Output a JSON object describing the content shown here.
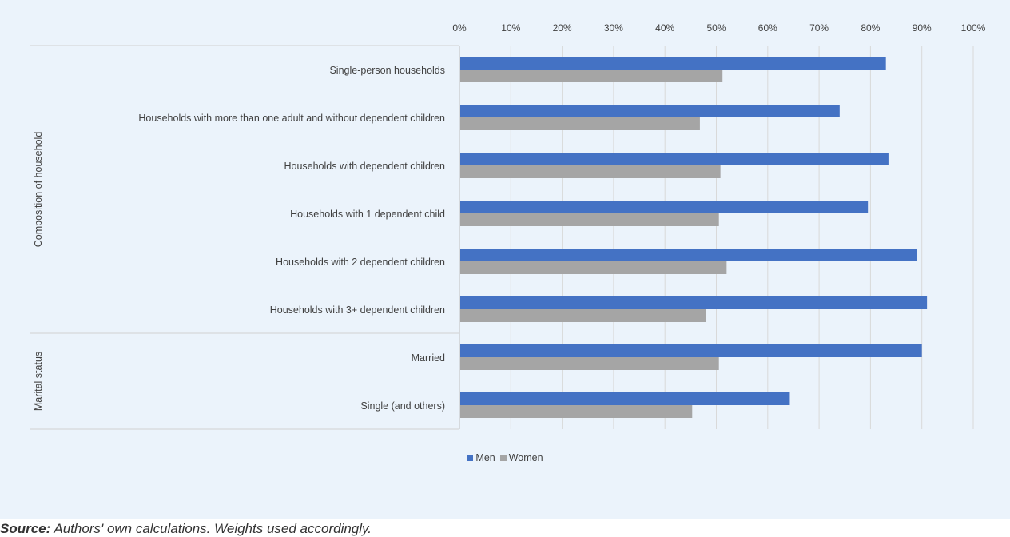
{
  "chart_data": {
    "type": "bar",
    "orientation": "horizontal",
    "x_ticks": [
      "0%",
      "10%",
      "20%",
      "30%",
      "40%",
      "50%",
      "60%",
      "70%",
      "80%",
      "90%",
      "100%"
    ],
    "xlim": [
      0,
      100
    ],
    "grid": true,
    "legend_position": "bottom",
    "groups": [
      {
        "label": "Composition of household",
        "categories": [
          "Single-person households",
          "Households with more than one adult and without dependent children",
          "Households with dependent children",
          "Households with 1 dependent child",
          "Households with 2 dependent children",
          "Households with 3+ dependent children"
        ]
      },
      {
        "label": "Marital status",
        "categories": [
          "Married",
          "Single (and others)"
        ]
      }
    ],
    "series": [
      {
        "name": "Men",
        "color": "#4472c4",
        "values": [
          83,
          74,
          83.5,
          79.5,
          89,
          91,
          90,
          64.3
        ]
      },
      {
        "name": "Women",
        "color": "#a5a5a5",
        "values": [
          51.2,
          46.8,
          50.8,
          50.5,
          52,
          48,
          50.5,
          45.3
        ]
      }
    ]
  },
  "source": {
    "label": "Source:",
    "text": " Authors' own calculations. Weights used accordingly."
  }
}
